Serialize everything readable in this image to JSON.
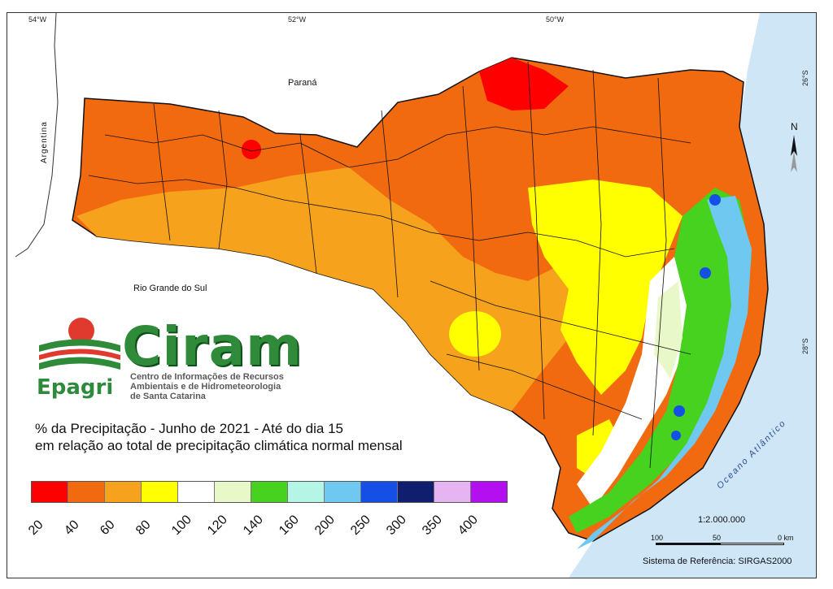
{
  "map": {
    "graticule": {
      "lon_labels": [
        "54°W",
        "52°W",
        "50°W"
      ],
      "lat_labels": [
        "26°S",
        "28°S"
      ]
    },
    "places": {
      "parana": "Paraná",
      "argentina": "Argentina",
      "rgs": "Rio Grande do Sul",
      "ocean": "Oceano Atlântico"
    },
    "north_label": "N",
    "colors": {
      "ocean": "#cfe6f7",
      "boundary": "#111111"
    }
  },
  "branding": {
    "ciram": "Ciram",
    "epagri": "Epagri",
    "subtitle_line1": "Centro de Informações de Recursos",
    "subtitle_line2": "Ambientais e de Hidrometeorologia",
    "subtitle_line3": "de Santa Catarina",
    "colors": {
      "green": "#2f8a3a",
      "red": "#e03a2f"
    }
  },
  "caption": {
    "line1": "% da Precipitação - Junho de 2021 - Até do dia 15",
    "line2": "em relação ao total de precipitação climática normal mensal"
  },
  "legend": {
    "colors": [
      "#ff0000",
      "#f26a10",
      "#f7a21c",
      "#ffff00",
      "#ffffff",
      "#e8f8c8",
      "#46d21e",
      "#b4f5e6",
      "#6ec8f0",
      "#1450e6",
      "#0f1e6e",
      "#e6b4f0",
      "#b40ff0"
    ],
    "labels": [
      "20",
      "40",
      "60",
      "80",
      "100",
      "120",
      "140",
      "160",
      "200",
      "250",
      "300",
      "350",
      "400"
    ]
  },
  "scale": {
    "ratio": "1:2.000.000",
    "labels": [
      "100",
      "50",
      "0 km"
    ]
  },
  "reference": "Sistema de Referência: SIRGAS2000"
}
